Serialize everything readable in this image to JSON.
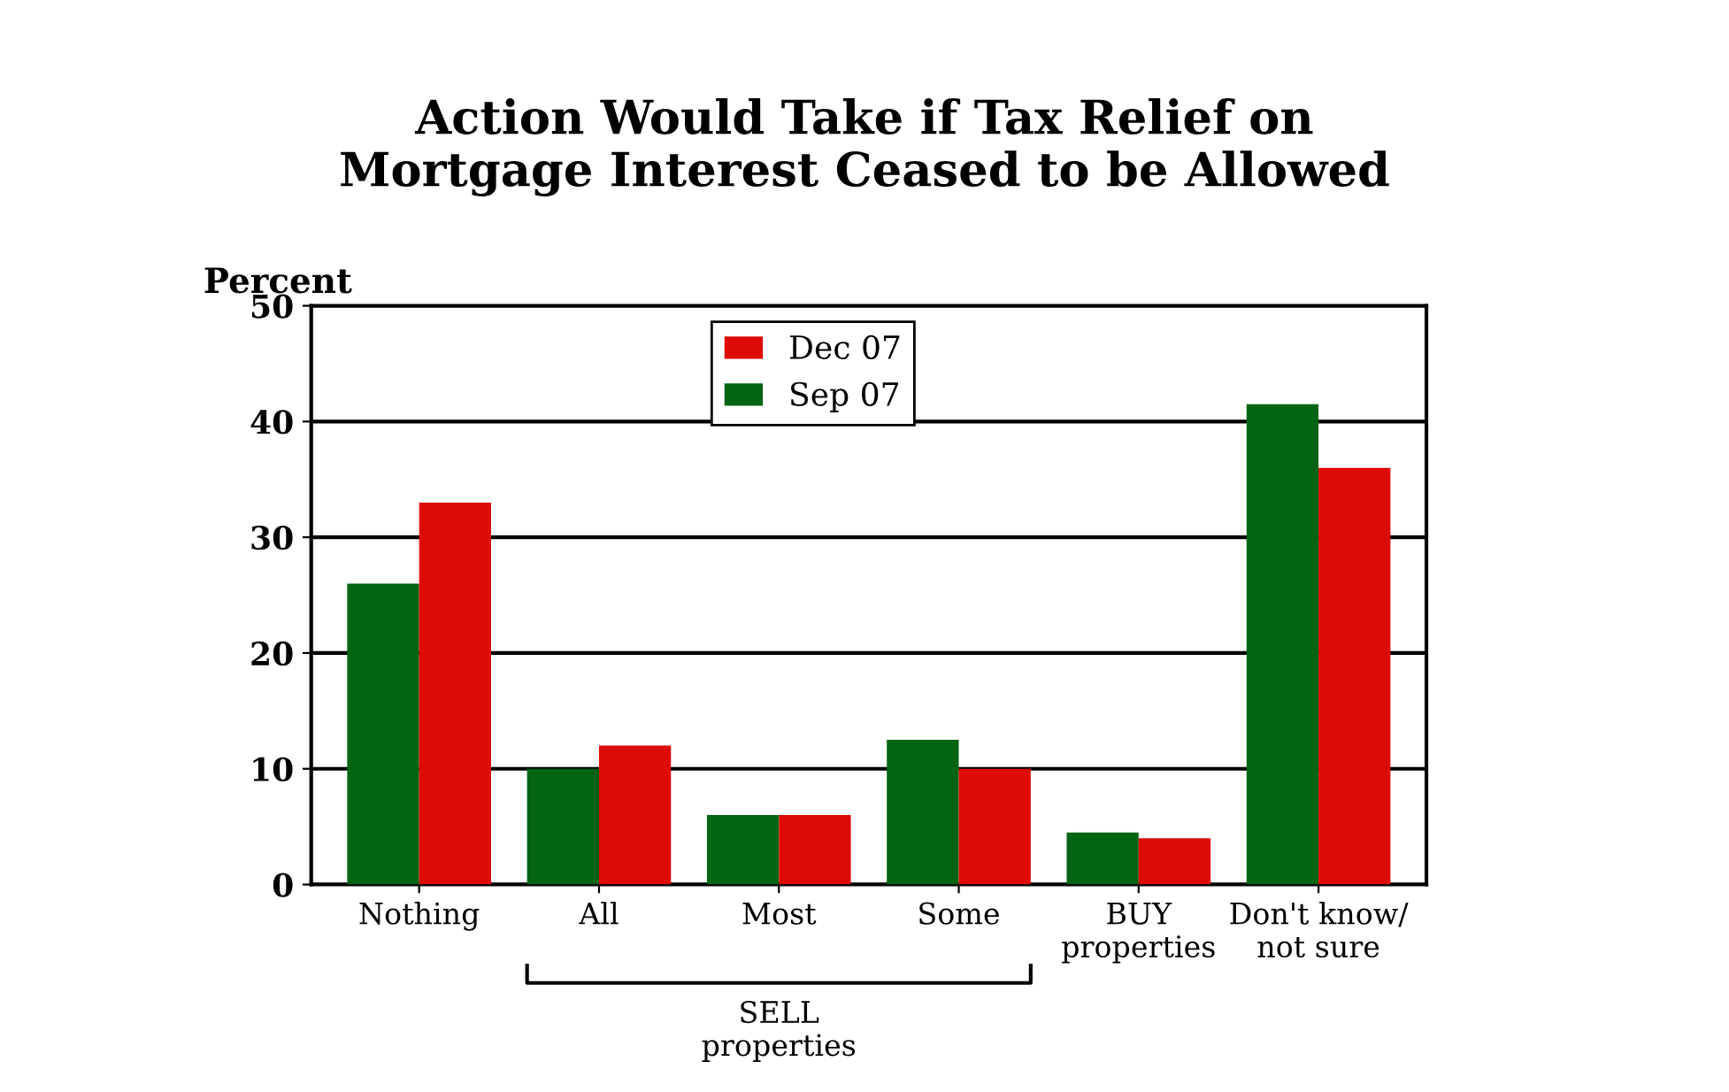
{
  "chart_data": {
    "type": "bar",
    "title": "Action Would Take if Tax Relief on\nMortgage Interest Ceased to be Allowed",
    "ylabel": "Percent",
    "categories": [
      "Nothing",
      "All",
      "Most",
      "Some",
      "BUY\nproperties",
      "Don't know/\nnot sure"
    ],
    "series": [
      {
        "name": "Sep 07",
        "color": "#036413",
        "values": [
          26,
          10,
          6,
          12.5,
          4.5,
          41.5
        ]
      },
      {
        "name": "Dec 07",
        "color": "#dd0a05",
        "values": [
          33,
          12,
          6,
          10,
          4,
          36
        ]
      }
    ],
    "annotations": [
      "SELL\nproperties"
    ],
    "ylim": [
      0,
      50
    ],
    "yticks": [
      0,
      10,
      20,
      30,
      40,
      50
    ],
    "grid": "y",
    "legend": "top"
  }
}
